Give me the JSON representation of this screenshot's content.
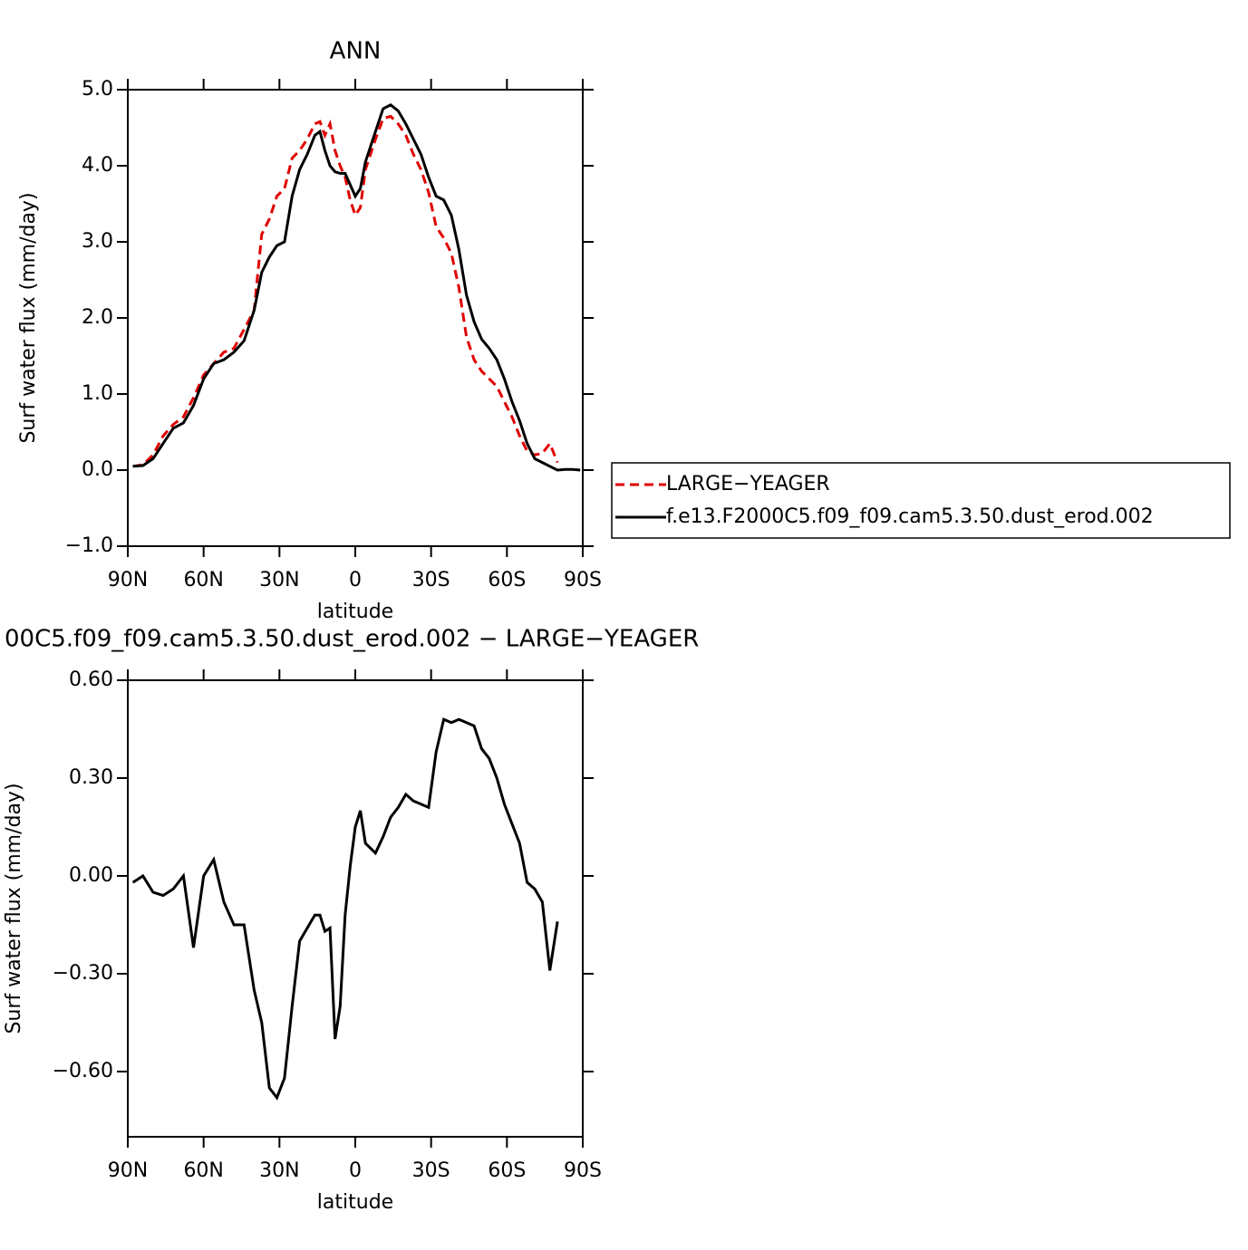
{
  "chart_data": [
    {
      "type": "line",
      "title": "ANN",
      "xlabel": "latitude",
      "ylabel": "Surf water flux (mm/day)",
      "x": [
        88,
        84,
        80,
        76,
        72,
        68,
        64,
        60,
        56,
        52,
        48,
        44,
        40,
        37,
        34,
        31,
        28,
        25,
        22,
        19,
        16,
        14,
        12,
        10,
        8,
        6,
        4,
        2,
        0,
        -2,
        -4,
        -8,
        -11,
        -14,
        -17,
        -20,
        -23,
        -26,
        -29,
        -32,
        -35,
        -38,
        -41,
        -44,
        -47,
        -50,
        -53,
        -56,
        -59,
        -62,
        -65,
        -68,
        -71,
        -74,
        -77,
        -80,
        -83,
        -86,
        -89
      ],
      "series": [
        {
          "name": "LARGE−YEAGER",
          "color": "#e00000",
          "line_style": "dashed",
          "values": [
            0.05,
            0.07,
            0.2,
            0.45,
            0.6,
            0.7,
            0.95,
            1.25,
            1.4,
            1.55,
            1.6,
            1.85,
            2.1,
            3.1,
            3.3,
            3.6,
            3.7,
            4.1,
            4.2,
            4.35,
            4.55,
            4.58,
            4.4,
            4.55,
            4.2,
            4.0,
            3.85,
            3.55,
            3.35,
            3.45,
            3.95,
            4.35,
            4.62,
            4.65,
            4.55,
            4.4,
            4.15,
            3.95,
            3.65,
            3.2,
            3.05,
            2.85,
            2.4,
            1.75,
            1.45,
            1.3,
            1.2,
            1.1,
            0.9,
            0.7,
            0.45,
            0.25,
            0.2,
            0.22,
            0.35,
            0.1,
            null,
            null,
            null
          ]
        },
        {
          "name": "f.e13.F2000C5.f09_f09.cam5.3.50.dust_erod.002",
          "color": "#000000",
          "line_style": "solid",
          "values": [
            0.05,
            0.06,
            0.15,
            0.35,
            0.55,
            0.62,
            0.85,
            1.2,
            1.4,
            1.45,
            1.55,
            1.7,
            2.1,
            2.6,
            2.8,
            2.95,
            3.0,
            3.6,
            3.95,
            4.15,
            4.4,
            4.45,
            4.2,
            4.0,
            3.92,
            3.9,
            3.9,
            3.75,
            3.6,
            3.7,
            4.05,
            4.45,
            4.75,
            4.8,
            4.72,
            4.55,
            4.35,
            4.15,
            3.85,
            3.6,
            3.55,
            3.35,
            2.9,
            2.3,
            1.95,
            1.72,
            1.6,
            1.45,
            1.2,
            0.9,
            0.65,
            0.35,
            0.15,
            0.1,
            0.05,
            0.0,
            0.01,
            0.01,
            0.0
          ]
        }
      ],
      "xlim": [
        90,
        -90
      ],
      "xticks": [
        {
          "value": 90,
          "label": "90N"
        },
        {
          "value": 60,
          "label": "60N"
        },
        {
          "value": 30,
          "label": "30N"
        },
        0,
        {
          "value": -30,
          "label": "30S"
        },
        {
          "value": -60,
          "label": "60S"
        },
        {
          "value": -90,
          "label": "90S"
        }
      ],
      "ylim": [
        -1,
        5
      ],
      "yticks": [
        {
          "value": -1,
          "label": "−1.0"
        },
        {
          "value": 0,
          "label": "0.0"
        },
        {
          "value": 1,
          "label": "1.0"
        },
        {
          "value": 2,
          "label": "2.0"
        },
        {
          "value": 3,
          "label": "3.0"
        },
        {
          "value": 4,
          "label": "4.0"
        },
        {
          "value": 5,
          "label": "5.0"
        }
      ],
      "legend": "right"
    },
    {
      "type": "line",
      "title": "00C5.f09_f09.cam5.3.50.dust_erod.002 − LARGE−YEAGER",
      "xlabel": "latitude",
      "ylabel": "Surf water flux (mm/day)",
      "x": [
        88,
        84,
        80,
        76,
        72,
        68,
        64,
        60,
        56,
        52,
        48,
        44,
        40,
        37,
        34,
        31,
        28,
        25,
        22,
        19,
        16,
        14,
        12,
        10,
        8,
        6,
        4,
        2,
        0,
        -2,
        -4,
        -8,
        -11,
        -14,
        -17,
        -20,
        -23,
        -26,
        -29,
        -32,
        -35,
        -38,
        -41,
        -44,
        -47,
        -50,
        -53,
        -56,
        -59,
        -62,
        -65,
        -68,
        -71,
        -74,
        -77,
        -80
      ],
      "values": [
        -0.02,
        0.0,
        -0.05,
        -0.06,
        -0.04,
        0.0,
        -0.22,
        0.0,
        0.05,
        -0.08,
        -0.15,
        -0.15,
        -0.35,
        -0.45,
        -0.65,
        -0.68,
        -0.62,
        -0.4,
        -0.2,
        -0.16,
        -0.12,
        -0.12,
        -0.17,
        -0.16,
        -0.5,
        -0.4,
        -0.12,
        0.03,
        0.15,
        0.2,
        0.1,
        0.07,
        0.12,
        0.18,
        0.21,
        0.25,
        0.23,
        0.22,
        0.21,
        0.38,
        0.48,
        0.47,
        0.48,
        0.47,
        0.46,
        0.39,
        0.36,
        0.3,
        0.22,
        0.16,
        0.1,
        -0.02,
        -0.04,
        -0.08,
        -0.29,
        -0.14
      ],
      "color": "#000000",
      "xlim": [
        90,
        -90
      ],
      "xticks": [
        {
          "value": 90,
          "label": "90N"
        },
        {
          "value": 60,
          "label": "60N"
        },
        {
          "value": 30,
          "label": "30N"
        },
        0,
        {
          "value": -30,
          "label": "30S"
        },
        {
          "value": -60,
          "label": "60S"
        },
        {
          "value": -90,
          "label": "90S"
        }
      ],
      "ylim": [
        -0.8,
        0.6
      ],
      "yticks": [
        {
          "value": -0.6,
          "label": "−0.60"
        },
        {
          "value": -0.3,
          "label": "−0.30"
        },
        {
          "value": 0,
          "label": "0.00"
        },
        {
          "value": 0.3,
          "label": "0.30"
        },
        {
          "value": 0.6,
          "label": "0.60"
        }
      ]
    }
  ]
}
